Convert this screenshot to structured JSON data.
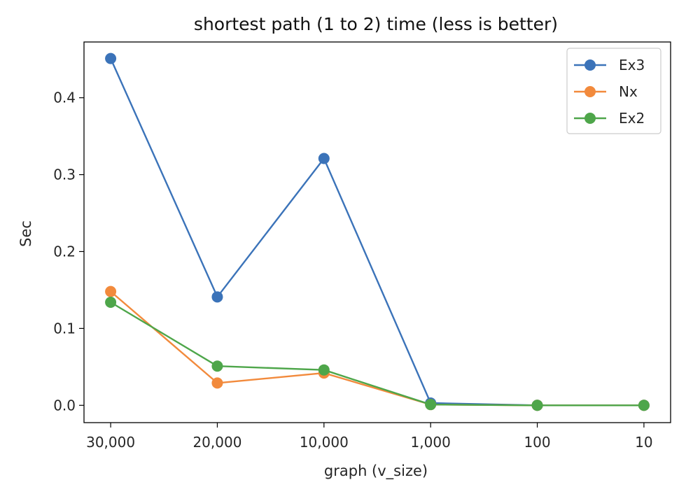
{
  "chart_data": {
    "type": "line",
    "title": "shortest path (1 to 2) time (less is better)",
    "xlabel": "graph (v_size)",
    "ylabel": "Sec",
    "categories": [
      "30,000",
      "20,000",
      "10,000",
      "1,000",
      "100",
      "10"
    ],
    "ylim": [
      -0.0225,
      0.4725
    ],
    "yticks": [
      "0.0",
      "0.1",
      "0.2",
      "0.3",
      "0.4"
    ],
    "ytick_values": [
      0.0,
      0.1,
      0.2,
      0.3,
      0.4
    ],
    "grid": false,
    "legend_position": "top-right",
    "series": [
      {
        "name": "Ex3",
        "color": "#3b73b9",
        "values": [
          0.451,
          0.141,
          0.321,
          0.003,
          0.0,
          0.0
        ]
      },
      {
        "name": "Nx",
        "color": "#f28a3c",
        "values": [
          0.148,
          0.029,
          0.042,
          0.001,
          0.0,
          0.0
        ]
      },
      {
        "name": "Ex2",
        "color": "#4ea64a",
        "values": [
          0.134,
          0.051,
          0.046,
          0.001,
          0.0,
          0.0
        ]
      }
    ]
  }
}
